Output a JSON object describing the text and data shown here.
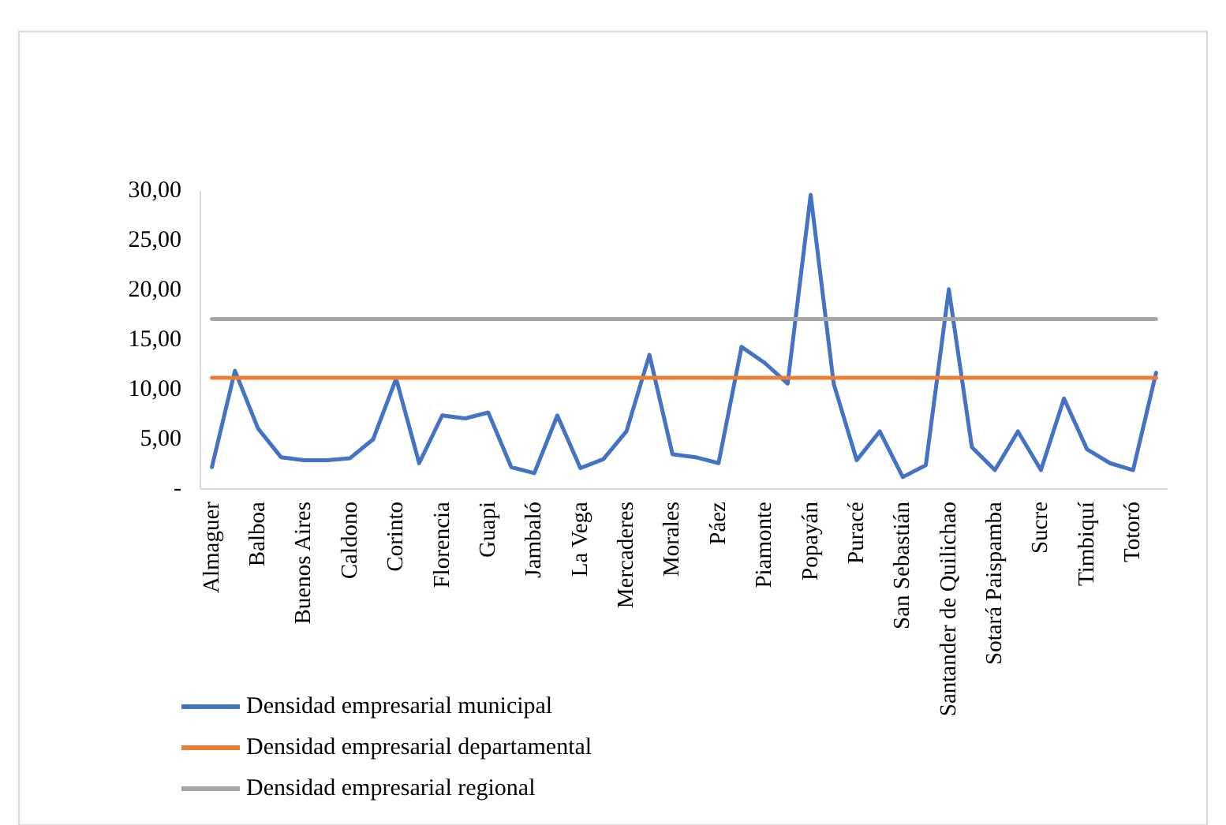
{
  "chart_data": {
    "type": "line",
    "categories": [
      "Almaguer",
      null,
      "Balboa",
      null,
      "Buenos Aires",
      null,
      "Caldono",
      null,
      "Corinto",
      null,
      "Florencia",
      null,
      "Guapi",
      null,
      "Jambaló",
      null,
      "La Vega",
      null,
      "Mercaderes",
      null,
      "Morales",
      null,
      "Páez",
      null,
      "Piamonte",
      null,
      "Popayán",
      null,
      "Puracé",
      null,
      "San Sebastián",
      null,
      "Santander de Quilichao",
      null,
      "Sotará Paispamba",
      null,
      "Sucre",
      null,
      "Timbiquí",
      null,
      "Totoró",
      null
    ],
    "series": [
      {
        "name": "Densidad empresarial municipal",
        "color": "#4472c4",
        "values": [
          2.2,
          11.9,
          6.1,
          3.2,
          2.9,
          2.9,
          3.1,
          5.0,
          11.1,
          2.6,
          7.4,
          7.1,
          7.7,
          2.2,
          1.6,
          7.4,
          2.1,
          3.0,
          5.8,
          13.5,
          3.5,
          3.2,
          2.6,
          14.3,
          12.7,
          10.6,
          29.6,
          10.6,
          2.9,
          5.8,
          1.2,
          2.4,
          20.1,
          4.2,
          1.9,
          5.8,
          1.9,
          9.1,
          4.0,
          2.6,
          1.9,
          11.7
        ]
      },
      {
        "name": "Densidad empresarial departamental",
        "color": "#ed7d31",
        "values": [
          11.2,
          11.2,
          11.2,
          11.2,
          11.2,
          11.2,
          11.2,
          11.2,
          11.2,
          11.2,
          11.2,
          11.2,
          11.2,
          11.2,
          11.2,
          11.2,
          11.2,
          11.2,
          11.2,
          11.2,
          11.2,
          11.2,
          11.2,
          11.2,
          11.2,
          11.2,
          11.2,
          11.2,
          11.2,
          11.2,
          11.2,
          11.2,
          11.2,
          11.2,
          11.2,
          11.2,
          11.2,
          11.2,
          11.2,
          11.2,
          11.2,
          11.2
        ]
      },
      {
        "name": "Densidad empresarial regional",
        "color": "#a5a5a5",
        "values": [
          17.1,
          17.1,
          17.1,
          17.1,
          17.1,
          17.1,
          17.1,
          17.1,
          17.1,
          17.1,
          17.1,
          17.1,
          17.1,
          17.1,
          17.1,
          17.1,
          17.1,
          17.1,
          17.1,
          17.1,
          17.1,
          17.1,
          17.1,
          17.1,
          17.1,
          17.1,
          17.1,
          17.1,
          17.1,
          17.1,
          17.1,
          17.1,
          17.1,
          17.1,
          17.1,
          17.1,
          17.1,
          17.1,
          17.1,
          17.1,
          17.1,
          17.1
        ]
      }
    ],
    "ylim": [
      0,
      30
    ],
    "yticks": [
      {
        "value": 0,
        "label": "-"
      },
      {
        "value": 5,
        "label": "5,00"
      },
      {
        "value": 10,
        "label": "10,00"
      },
      {
        "value": 15,
        "label": "15,00"
      },
      {
        "value": 20,
        "label": "20,00"
      },
      {
        "value": 25,
        "label": "25,00"
      },
      {
        "value": 30,
        "label": "30,00"
      }
    ],
    "grid": false,
    "legend": "bottom left",
    "marker": "none",
    "line_style": "solid"
  }
}
